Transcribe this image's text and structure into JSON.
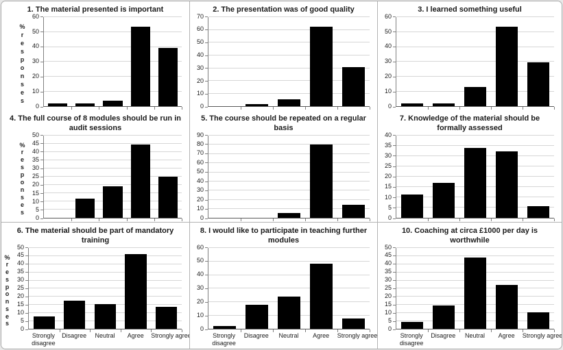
{
  "figure": {
    "description": "Grid of nine survey-feedback bar charts",
    "categories": [
      "Strongly disagree",
      "Disagree",
      "Neutral",
      "Agree",
      "Strongly agree"
    ],
    "y_axis_label": "% responses",
    "bar_color": "#000000",
    "gridline_color": "#d6d6d6",
    "axis_color": "#7f7f7f"
  },
  "chart_data": [
    {
      "type": "bar",
      "title": "1. The material presented is important",
      "categories": [
        "Strongly disagree",
        "Disagree",
        "Neutral",
        "Agree",
        "Strongly agree"
      ],
      "values": [
        1.8,
        1.8,
        3.6,
        53.6,
        39.3
      ],
      "ylim": [
        0,
        60
      ],
      "ytick": 10,
      "ylabel": "% responses",
      "xlabel": "",
      "grid": true,
      "legend": false
    },
    {
      "type": "bar",
      "title": "2. The presentation was of good quality",
      "categories": [
        "Strongly disagree",
        "Disagree",
        "Neutral",
        "Agree",
        "Strongly agree"
      ],
      "values": [
        0,
        1.8,
        5.4,
        62.5,
        30.4
      ],
      "ylim": [
        0,
        70
      ],
      "ytick": 10,
      "ylabel": "",
      "xlabel": "",
      "grid": true,
      "legend": false
    },
    {
      "type": "bar",
      "title": "3. I learned something useful",
      "categories": [
        "Strongly disagree",
        "Disagree",
        "Neutral",
        "Agree",
        "Strongly agree"
      ],
      "values": [
        1.8,
        1.8,
        12.7,
        53.6,
        29.6
      ],
      "ylim": [
        0,
        60
      ],
      "ytick": 10,
      "ylabel": "",
      "xlabel": "",
      "grid": true,
      "legend": false
    },
    {
      "type": "bar",
      "title": "4. The full course of 8 modules should be run in audit sessions",
      "categories": [
        "Strongly disagree",
        "Disagree",
        "Neutral",
        "Agree",
        "Strongly agree"
      ],
      "values": [
        0,
        11.5,
        19.2,
        44.2,
        25
      ],
      "ylim": [
        0,
        50
      ],
      "ytick": 5,
      "ylabel": "% responses",
      "xlabel": "",
      "grid": true,
      "legend": false
    },
    {
      "type": "bar",
      "title": "5. The course should be repeated on a regular basis",
      "categories": [
        "Strongly disagree",
        "Disagree",
        "Neutral",
        "Agree",
        "Strongly agree"
      ],
      "values": [
        0,
        0,
        5.5,
        80,
        14.5
      ],
      "ylim": [
        0,
        90
      ],
      "ytick": 10,
      "ylabel": "",
      "xlabel": "",
      "grid": true,
      "legend": false
    },
    {
      "type": "bar",
      "title": "7. Knowledge of the material should be formally assessed",
      "categories": [
        "Strongly disagree",
        "Disagree",
        "Neutral",
        "Agree",
        "Strongly agree"
      ],
      "values": [
        11.3,
        17,
        34,
        32.1,
        5.7
      ],
      "ylim": [
        0,
        40
      ],
      "ytick": 5,
      "ylabel": "",
      "xlabel": "",
      "grid": true,
      "legend": false
    },
    {
      "type": "bar",
      "title": "6. The material should be part of mandatory training",
      "categories": [
        "Strongly disagree",
        "Disagree",
        "Neutral",
        "Agree",
        "Strongly agree"
      ],
      "values": [
        7.7,
        17.3,
        15.4,
        46.2,
        13.5
      ],
      "ylim": [
        0,
        50
      ],
      "ytick": 5,
      "ylabel": "% responses",
      "xlabel": "",
      "grid": true,
      "legend": false
    },
    {
      "type": "bar",
      "title": "8. I would like to participate in teaching further modules",
      "categories": [
        "Strongly disagree",
        "Disagree",
        "Neutral",
        "Agree",
        "Strongly agree"
      ],
      "values": [
        2,
        18,
        24,
        48,
        8
      ],
      "ylim": [
        0,
        60
      ],
      "ytick": 10,
      "ylabel": "",
      "xlabel": "",
      "grid": true,
      "legend": false
    },
    {
      "type": "bar",
      "title": "10. Coaching at circa £1000 per day is worthwhile",
      "categories": [
        "Strongly disagree",
        "Disagree",
        "Neutral",
        "Agree",
        "Strongly agree"
      ],
      "values": [
        4.2,
        14.6,
        43.8,
        27.1,
        10.4
      ],
      "ylim": [
        0,
        50
      ],
      "ytick": 5,
      "ylabel": "",
      "xlabel": "",
      "grid": true,
      "legend": false
    }
  ]
}
